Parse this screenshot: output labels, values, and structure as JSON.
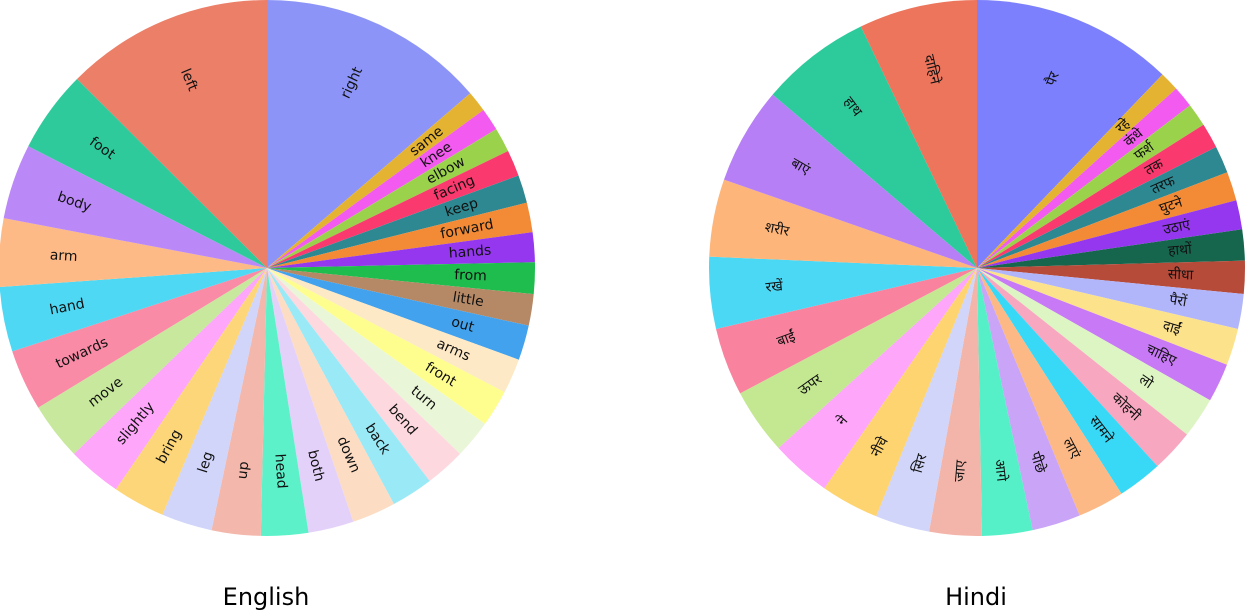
{
  "chart_data": [
    {
      "type": "pie",
      "title": "English",
      "start_angle_deg": 90,
      "direction": "clockwise",
      "slices": [
        {
          "label": "right",
          "value": 13.0,
          "color": "#8c95f7"
        },
        {
          "label": "same",
          "value": 1.2,
          "color": "#e5b332"
        },
        {
          "label": "knee",
          "value": 1.3,
          "color": "#f35af0"
        },
        {
          "label": "elbow",
          "value": 1.4,
          "color": "#9bd24c"
        },
        {
          "label": "facing",
          "value": 1.5,
          "color": "#fa3a6e"
        },
        {
          "label": "keep",
          "value": 1.6,
          "color": "#2d8891"
        },
        {
          "label": "forward",
          "value": 1.7,
          "color": "#f28a36"
        },
        {
          "label": "hands",
          "value": 1.7,
          "color": "#9437ee"
        },
        {
          "label": "from",
          "value": 1.8,
          "color": "#1fbd4e"
        },
        {
          "label": "little",
          "value": 1.8,
          "color": "#b58966"
        },
        {
          "label": "out",
          "value": 2.0,
          "color": "#42a2ee"
        },
        {
          "label": "arms",
          "value": 2.0,
          "color": "#fde9c5"
        },
        {
          "label": "front",
          "value": 2.1,
          "color": "#fefe8f"
        },
        {
          "label": "turn",
          "value": 2.2,
          "color": "#eaf6d8"
        },
        {
          "label": "bend",
          "value": 2.3,
          "color": "#fdd8df"
        },
        {
          "label": "back",
          "value": 2.4,
          "color": "#9ae9f6"
        },
        {
          "label": "down",
          "value": 2.5,
          "color": "#fddcc4"
        },
        {
          "label": "both",
          "value": 2.6,
          "color": "#e4d1fa"
        },
        {
          "label": "head",
          "value": 2.7,
          "color": "#5cf1c9"
        },
        {
          "label": "up",
          "value": 2.8,
          "color": "#f3b7ab"
        },
        {
          "label": "leg",
          "value": 2.9,
          "color": "#d0d5f9"
        },
        {
          "label": "bring",
          "value": 3.0,
          "color": "#fdd679"
        },
        {
          "label": "slightly",
          "value": 3.1,
          "color": "#fda6fa"
        },
        {
          "label": "move",
          "value": 3.3,
          "color": "#c7e89d"
        },
        {
          "label": "towards",
          "value": 3.5,
          "color": "#f98ba6"
        },
        {
          "label": "hand",
          "value": 3.7,
          "color": "#4fd8f4"
        },
        {
          "label": "arm",
          "value": 3.9,
          "color": "#fdba86"
        },
        {
          "label": "body",
          "value": 4.3,
          "color": "#bb89f7"
        },
        {
          "label": "foot",
          "value": 4.7,
          "color": "#2fca9c"
        },
        {
          "label": "left",
          "value": 11.9,
          "color": "#ec7f68"
        }
      ]
    },
    {
      "type": "pie",
      "title": "Hindi",
      "start_angle_deg": 90,
      "direction": "clockwise",
      "slices": [
        {
          "label": "पैर",
          "value": 10.4,
          "color": "#7c80fc"
        },
        {
          "label": "रहे",
          "value": 1.0,
          "color": "#e5b332"
        },
        {
          "label": "कंधे",
          "value": 1.1,
          "color": "#f35af0"
        },
        {
          "label": "फर्श",
          "value": 1.2,
          "color": "#9bd24c"
        },
        {
          "label": "तक",
          "value": 1.3,
          "color": "#fa3a6e"
        },
        {
          "label": "तरफ",
          "value": 1.4,
          "color": "#2d8891"
        },
        {
          "label": "घुटने",
          "value": 1.5,
          "color": "#f28a36"
        },
        {
          "label": "उठाएं",
          "value": 1.5,
          "color": "#9437ee"
        },
        {
          "label": "हाथों",
          "value": 1.6,
          "color": "#16664e"
        },
        {
          "label": "सीधा",
          "value": 1.7,
          "color": "#b64b3a"
        },
        {
          "label": "पैरों",
          "value": 1.8,
          "color": "#b1b6fb"
        },
        {
          "label": "दाईं",
          "value": 1.9,
          "color": "#fde28c"
        },
        {
          "label": "चाहिए",
          "value": 2.0,
          "color": "#c879f5"
        },
        {
          "label": "लो",
          "value": 2.1,
          "color": "#dcf5c2"
        },
        {
          "label": "कोहनी",
          "value": 2.2,
          "color": "#f8a7c0"
        },
        {
          "label": "सामने",
          "value": 2.3,
          "color": "#38d9f6"
        },
        {
          "label": "लाएं",
          "value": 2.4,
          "color": "#fdb985"
        },
        {
          "label": "पीछे",
          "value": 2.5,
          "color": "#c9a4f7"
        },
        {
          "label": "आगे",
          "value": 2.6,
          "color": "#55f0c8"
        },
        {
          "label": "जाए",
          "value": 2.7,
          "color": "#f3b5a9"
        },
        {
          "label": "सिर",
          "value": 2.8,
          "color": "#d0d5f9"
        },
        {
          "label": "नीचे",
          "value": 3.0,
          "color": "#fdd46f"
        },
        {
          "label": "ने",
          "value": 3.1,
          "color": "#fda6fa"
        },
        {
          "label": "ऊपर",
          "value": 3.4,
          "color": "#c3e891"
        },
        {
          "label": "बाईं",
          "value": 3.5,
          "color": "#f9839e"
        },
        {
          "label": "रखें",
          "value": 3.7,
          "color": "#4bd8f4"
        },
        {
          "label": "शरीर",
          "value": 4.0,
          "color": "#fdb57a"
        },
        {
          "label": "बाएं",
          "value": 5.0,
          "color": "#b67ff5"
        },
        {
          "label": "हाथ",
          "value": 5.7,
          "color": "#2dca9c"
        },
        {
          "label": "दाहिने",
          "value": 6.1,
          "color": "#ec755c"
        }
      ]
    }
  ]
}
